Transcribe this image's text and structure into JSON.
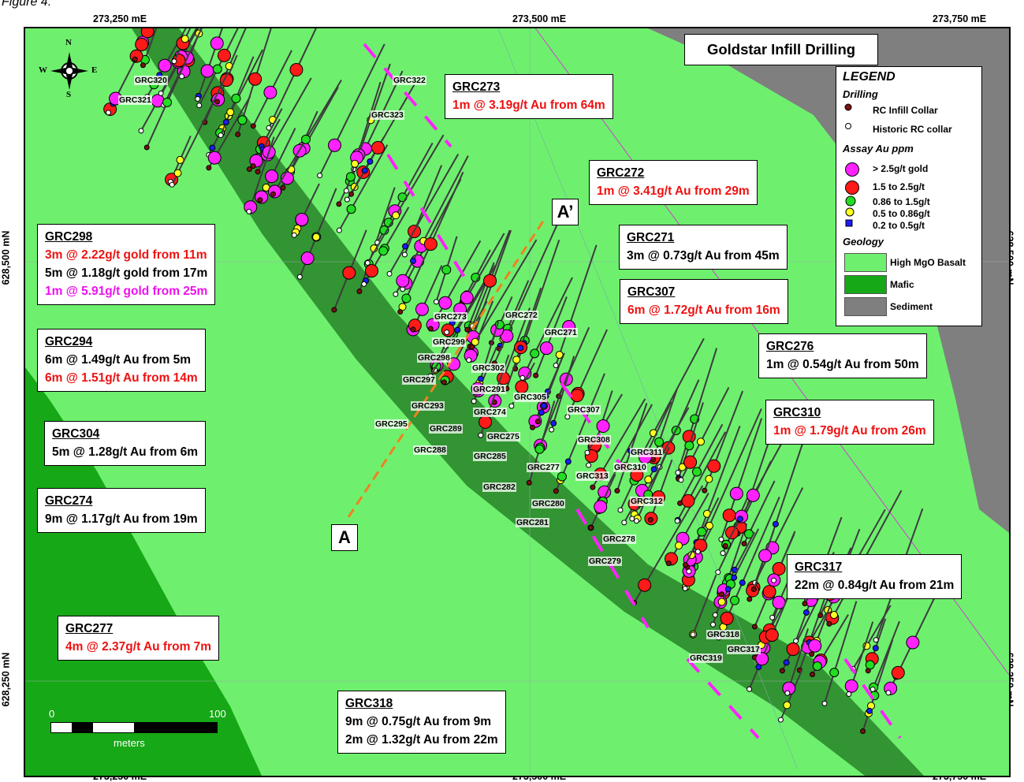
{
  "figure_caption": "Figure 4.",
  "title": "Goldstar Infill Drilling",
  "axes": {
    "easting_labels": [
      "273,250 mE",
      "273,500 mE",
      "273,750 mE"
    ],
    "northing_labels": [
      "628,500 mN",
      "628,250 mN"
    ]
  },
  "north_arrow": {
    "n": "N",
    "s": "S",
    "e": "E",
    "w": "W"
  },
  "section_labels": {
    "start": "A",
    "end": "A’"
  },
  "scale_bar": {
    "start": "0",
    "end": "100",
    "unit": "meters"
  },
  "legend": {
    "title": "LEGEND",
    "drilling_title": "Drilling",
    "drilling": [
      {
        "label": "RC Infill Collar",
        "icon": "dark-red-dot"
      },
      {
        "label": "Historic RC collar",
        "icon": "white-dot"
      }
    ],
    "assay_title": "Assay Au ppm",
    "assay": [
      {
        "label": "> 2.5g/t gold",
        "color": "#ff22ff"
      },
      {
        "label": "1.5 to 2.5g/t",
        "color": "#ff1a1a"
      },
      {
        "label": "0.86 to 1.5g/t",
        "color": "#22dd22"
      },
      {
        "label": "0.5 to 0.86g/t",
        "color": "#ffff22"
      },
      {
        "label": "0.2 to 0.5g/t",
        "color": "#1a1aff"
      }
    ],
    "geology_title": "Geology",
    "geology": [
      {
        "label": "High MgO Basalt",
        "color": "#6ef06e"
      },
      {
        "label": "Mafic",
        "color": "#16a816"
      },
      {
        "label": "Sediment",
        "color": "#7f7f7f"
      }
    ]
  },
  "callouts": [
    {
      "id": "GRC273",
      "lines": [
        {
          "text": "1m @ 3.19g/t Au from 64m",
          "color": "red"
        }
      ]
    },
    {
      "id": "GRC272",
      "lines": [
        {
          "text": "1m @ 3.41g/t Au from 29m",
          "color": "red"
        }
      ]
    },
    {
      "id": "GRC298",
      "lines": [
        {
          "text": "3m @ 2.22g/t gold from 11m",
          "color": "red"
        },
        {
          "text": "5m @ 1.18g/t gold from 17m",
          "color": "black"
        },
        {
          "text": "1m @ 5.91g/t gold from 25m",
          "color": "magenta"
        }
      ]
    },
    {
      "id": "GRC271",
      "lines": [
        {
          "text": "3m @ 0.73g/t Au from 45m",
          "color": "black"
        }
      ]
    },
    {
      "id": "GRC307",
      "lines": [
        {
          "text": "6m @ 1.72g/t Au from 16m",
          "color": "red"
        }
      ]
    },
    {
      "id": "GRC294",
      "lines": [
        {
          "text": "6m @ 1.49g/t Au from 5m",
          "color": "black"
        },
        {
          "text": "6m @ 1.51g/t Au from 14m",
          "color": "red"
        }
      ]
    },
    {
      "id": "GRC276",
      "lines": [
        {
          "text": "1m @ 0.54g/t Au from 50m",
          "color": "black"
        }
      ]
    },
    {
      "id": "GRC310",
      "lines": [
        {
          "text": "1m @ 1.79g/t Au from 26m",
          "color": "red"
        }
      ]
    },
    {
      "id": "GRC304",
      "lines": [
        {
          "text": "5m @ 1.28g/t Au from 6m",
          "color": "black"
        }
      ]
    },
    {
      "id": "GRC274",
      "lines": [
        {
          "text": "9m @ 1.17g/t Au from 19m",
          "color": "black"
        }
      ]
    },
    {
      "id": "GRC317",
      "lines": [
        {
          "text": "22m @ 0.84g/t Au from 21m",
          "color": "black"
        }
      ]
    },
    {
      "id": "GRC277",
      "lines": [
        {
          "text": "4m @ 2.37g/t Au from 7m",
          "color": "red"
        }
      ]
    },
    {
      "id": "GRC318",
      "lines": [
        {
          "text": "9m @ 0.75g/t Au from 9m",
          "color": "black"
        },
        {
          "text": "2m @ 1.32g/t Au from 22m",
          "color": "black"
        }
      ]
    }
  ],
  "hole_labels": [
    "GRC320",
    "GRC321",
    "GRC322",
    "GRC323",
    "GRC273",
    "GRC272",
    "GRC271",
    "GRC299",
    "GRC298",
    "GRC297",
    "GRC302",
    "GRC291",
    "GRC293",
    "GRC305",
    "GRC274",
    "GRC307",
    "GRC295",
    "GRC289",
    "GRC275",
    "GRC288",
    "GRC285",
    "GRC308",
    "GRC311",
    "GRC277",
    "GRC310",
    "GRC313",
    "GRC282",
    "GRC312",
    "GRC280",
    "GRC281",
    "GRC278",
    "GRC279",
    "GRC318",
    "GRC317",
    "GRC319"
  ]
}
